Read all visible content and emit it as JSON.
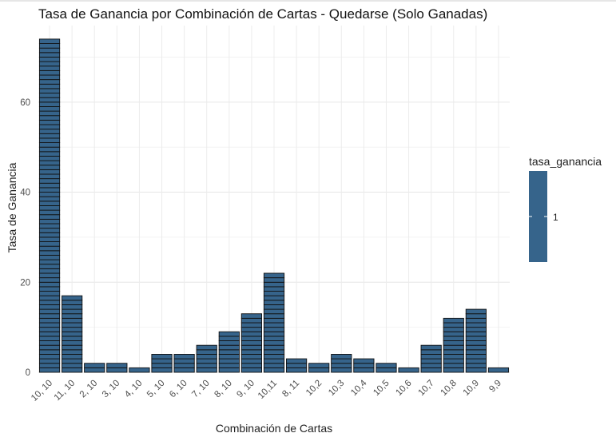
{
  "chart_data": {
    "type": "bar",
    "title": "Tasa de Ganancia por Combinación de Cartas - Quedarse (Solo Ganadas)",
    "xlabel": "Combinación de Cartas",
    "ylabel": "Tasa de Ganancia",
    "categories": [
      "10, 10",
      "11, 10",
      "2, 10",
      "3, 10",
      "4, 10",
      "5, 10",
      "6, 10",
      "7, 10",
      "8, 10",
      "9, 10",
      "10,11",
      "8, 11",
      "10,2",
      "10,3",
      "10,4",
      "10,5",
      "10,6",
      "10,7",
      "10,8",
      "10,9",
      "9,9"
    ],
    "values": [
      74,
      17,
      2,
      2,
      1,
      4,
      4,
      6,
      9,
      13,
      22,
      3,
      2,
      4,
      3,
      2,
      1,
      6,
      12,
      14,
      1
    ],
    "ylim": [
      0,
      77
    ],
    "yticks": [
      0,
      20,
      40,
      60
    ],
    "grid": true,
    "bar_color": "#36648b",
    "bar_outline": "#111111",
    "legend": {
      "title": "tasa_ganancia",
      "label": "1",
      "placement": "right"
    }
  }
}
